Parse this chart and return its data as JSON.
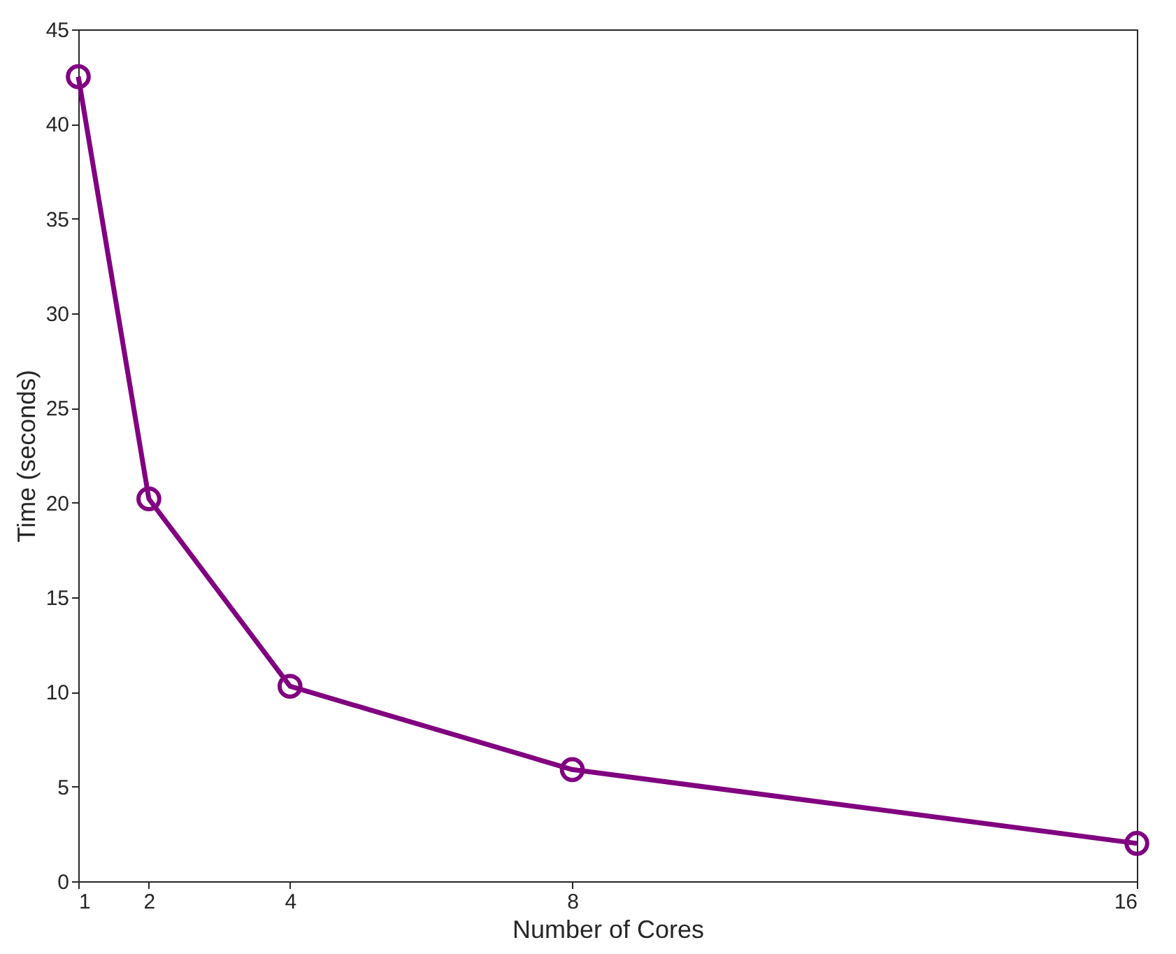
{
  "chart_data": {
    "type": "line",
    "xlabel": "Number of Cores",
    "ylabel": "Time (seconds)",
    "x": [
      1,
      2,
      4,
      8,
      16
    ],
    "series": [
      {
        "color": "#800080",
        "values": [
          42.5,
          20.2,
          10.3,
          5.9,
          2.0
        ]
      }
    ],
    "xlim": [
      1,
      16
    ],
    "xticks": [
      1,
      2,
      4,
      8,
      16
    ],
    "ylim": [
      0,
      45
    ],
    "yticks": [
      0,
      5,
      10,
      15,
      20,
      25,
      30,
      35,
      40,
      45
    ],
    "marker": "circle",
    "line_style": "solid",
    "grid": false
  }
}
